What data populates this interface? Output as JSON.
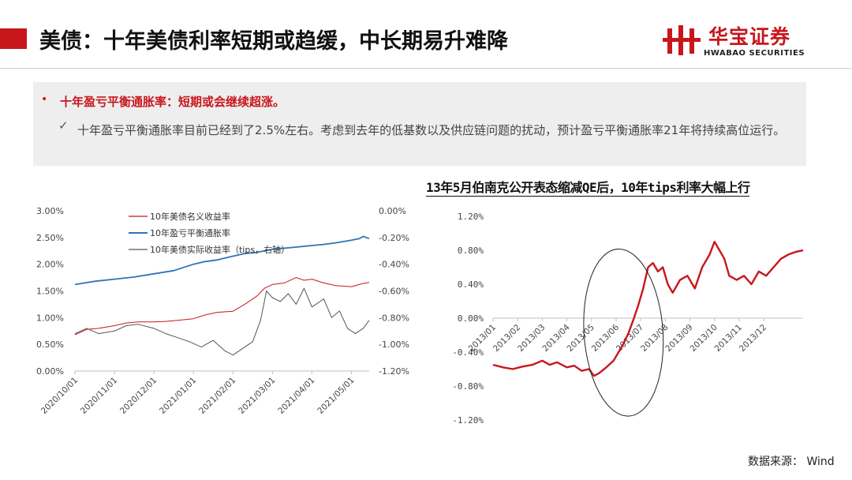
{
  "slide": {
    "title": "美债：十年美债利率短期或趋缓，中长期易升难降",
    "logo_cn": "华宝证券",
    "logo_en": "HWABAO SECURITIES",
    "source": "数据来源：  Wind"
  },
  "colors": {
    "accent": "#c8161d",
    "blue": "#2e75b6",
    "gray": "#555555"
  },
  "note": {
    "heading": "十年盈亏平衡通胀率：短期或会继续超涨。",
    "detail": "十年盈亏平衡通胀率目前已经到了2.5%左右。考虑到去年的低基数以及供应链问题的扰动，预计盈亏平衡通胀率21年将持续高位运行。"
  },
  "chart_data": [
    {
      "type": "line",
      "title": "",
      "xlabel": "",
      "ylabel": "",
      "x_ticks": [
        "2020/10/01",
        "2020/11/01",
        "2020/12/01",
        "2021/01/01",
        "2021/02/01",
        "2021/03/01",
        "2021/04/01",
        "2021/05/01"
      ],
      "y_left_ticks": [
        "3.00%",
        "2.50%",
        "2.00%",
        "1.50%",
        "1.00%",
        "0.50%",
        "0.00%"
      ],
      "y_right_ticks": [
        "0.00%",
        "-0.20%",
        "-0.40%",
        "-0.60%",
        "-0.80%",
        "-1.00%",
        "-1.20%"
      ],
      "ylim_left": [
        0,
        3.0
      ],
      "ylim_right": [
        -1.2,
        0.0
      ],
      "xlim": [
        0,
        7.45
      ],
      "legend_placement": "top-left",
      "series": [
        {
          "name": "10年美债名义收益率",
          "axis": "left",
          "color": "#c8161d",
          "x": [
            0,
            0.3,
            0.6,
            1,
            1.3,
            1.6,
            2,
            2.3,
            2.6,
            3,
            3.3,
            3.6,
            4,
            4.3,
            4.6,
            4.8,
            5,
            5.3,
            5.6,
            5.8,
            6,
            6.3,
            6.6,
            7,
            7.3,
            7.45
          ],
          "y": [
            0.68,
            0.78,
            0.8,
            0.85,
            0.9,
            0.92,
            0.92,
            0.93,
            0.95,
            0.98,
            1.05,
            1.1,
            1.12,
            1.25,
            1.4,
            1.55,
            1.62,
            1.65,
            1.75,
            1.7,
            1.72,
            1.65,
            1.6,
            1.58,
            1.64,
            1.66
          ]
        },
        {
          "name": "10年盈亏平衡通胀率",
          "axis": "left",
          "color": "#2e75b6",
          "x": [
            0,
            0.5,
            1,
            1.5,
            2,
            2.5,
            3,
            3.3,
            3.6,
            4,
            4.3,
            4.6,
            5,
            5.3,
            5.6,
            6,
            6.3,
            6.6,
            7,
            7.2,
            7.3,
            7.45
          ],
          "y": [
            1.62,
            1.68,
            1.72,
            1.76,
            1.82,
            1.88,
            2.0,
            2.05,
            2.08,
            2.15,
            2.2,
            2.22,
            2.28,
            2.3,
            2.32,
            2.35,
            2.37,
            2.4,
            2.45,
            2.48,
            2.52,
            2.48
          ]
        },
        {
          "name": "10年美债实际收益率（tips，右轴）",
          "axis": "right",
          "color": "#555555",
          "x": [
            0,
            0.3,
            0.6,
            1,
            1.3,
            1.6,
            2,
            2.3,
            2.6,
            2.9,
            3.2,
            3.5,
            3.8,
            4,
            4.3,
            4.5,
            4.7,
            4.85,
            5,
            5.2,
            5.4,
            5.6,
            5.8,
            6,
            6.3,
            6.5,
            6.7,
            6.9,
            7.1,
            7.3,
            7.45
          ],
          "y": [
            -0.92,
            -0.88,
            -0.92,
            -0.9,
            -0.86,
            -0.85,
            -0.88,
            -0.92,
            -0.95,
            -0.98,
            -1.02,
            -0.97,
            -1.05,
            -1.08,
            -1.02,
            -0.98,
            -0.82,
            -0.6,
            -0.65,
            -0.68,
            -0.62,
            -0.7,
            -0.58,
            -0.72,
            -0.66,
            -0.8,
            -0.75,
            -0.88,
            -0.92,
            -0.88,
            -0.82
          ]
        }
      ]
    },
    {
      "type": "line",
      "title": "13年5月伯南克公开表态缩减QE后，10年tips利率大幅上行",
      "xlabel": "",
      "ylabel": "",
      "x_ticks": [
        "2013/01",
        "2013/02",
        "2013/03",
        "2013/04",
        "2013/05",
        "2013/06",
        "2013/07",
        "2013/08",
        "2013/09",
        "2013/10",
        "2013/11",
        "2013/12"
      ],
      "y_ticks": [
        "1.20%",
        "0.80%",
        "0.40%",
        "0.00%",
        "-0.40%",
        "-0.80%",
        "-1.20%"
      ],
      "ylim": [
        -1.2,
        1.2
      ],
      "xlim": [
        0,
        12.6
      ],
      "annotation": "ellipse around 2013/05–2013/07",
      "series": [
        {
          "name": "",
          "color": "#c8161d",
          "x": [
            0,
            0.4,
            0.8,
            1.2,
            1.6,
            2,
            2.3,
            2.6,
            3,
            3.3,
            3.6,
            3.9,
            4.1,
            4.3,
            4.6,
            4.9,
            5.1,
            5.3,
            5.5,
            5.7,
            5.9,
            6.1,
            6.3,
            6.5,
            6.7,
            6.9,
            7.1,
            7.3,
            7.6,
            7.9,
            8.2,
            8.5,
            8.8,
            9.0,
            9.2,
            9.4,
            9.6,
            9.9,
            10.2,
            10.5,
            10.8,
            11.1,
            11.4,
            11.7,
            12.0,
            12.3,
            12.6
          ],
          "y": [
            -0.55,
            -0.58,
            -0.6,
            -0.57,
            -0.55,
            -0.5,
            -0.55,
            -0.52,
            -0.58,
            -0.56,
            -0.62,
            -0.6,
            -0.68,
            -0.65,
            -0.58,
            -0.5,
            -0.4,
            -0.3,
            -0.18,
            -0.02,
            0.15,
            0.35,
            0.6,
            0.65,
            0.55,
            0.6,
            0.4,
            0.3,
            0.45,
            0.5,
            0.35,
            0.6,
            0.75,
            0.9,
            0.8,
            0.7,
            0.5,
            0.45,
            0.5,
            0.4,
            0.55,
            0.5,
            0.6,
            0.7,
            0.75,
            0.78,
            0.8
          ]
        }
      ]
    }
  ]
}
